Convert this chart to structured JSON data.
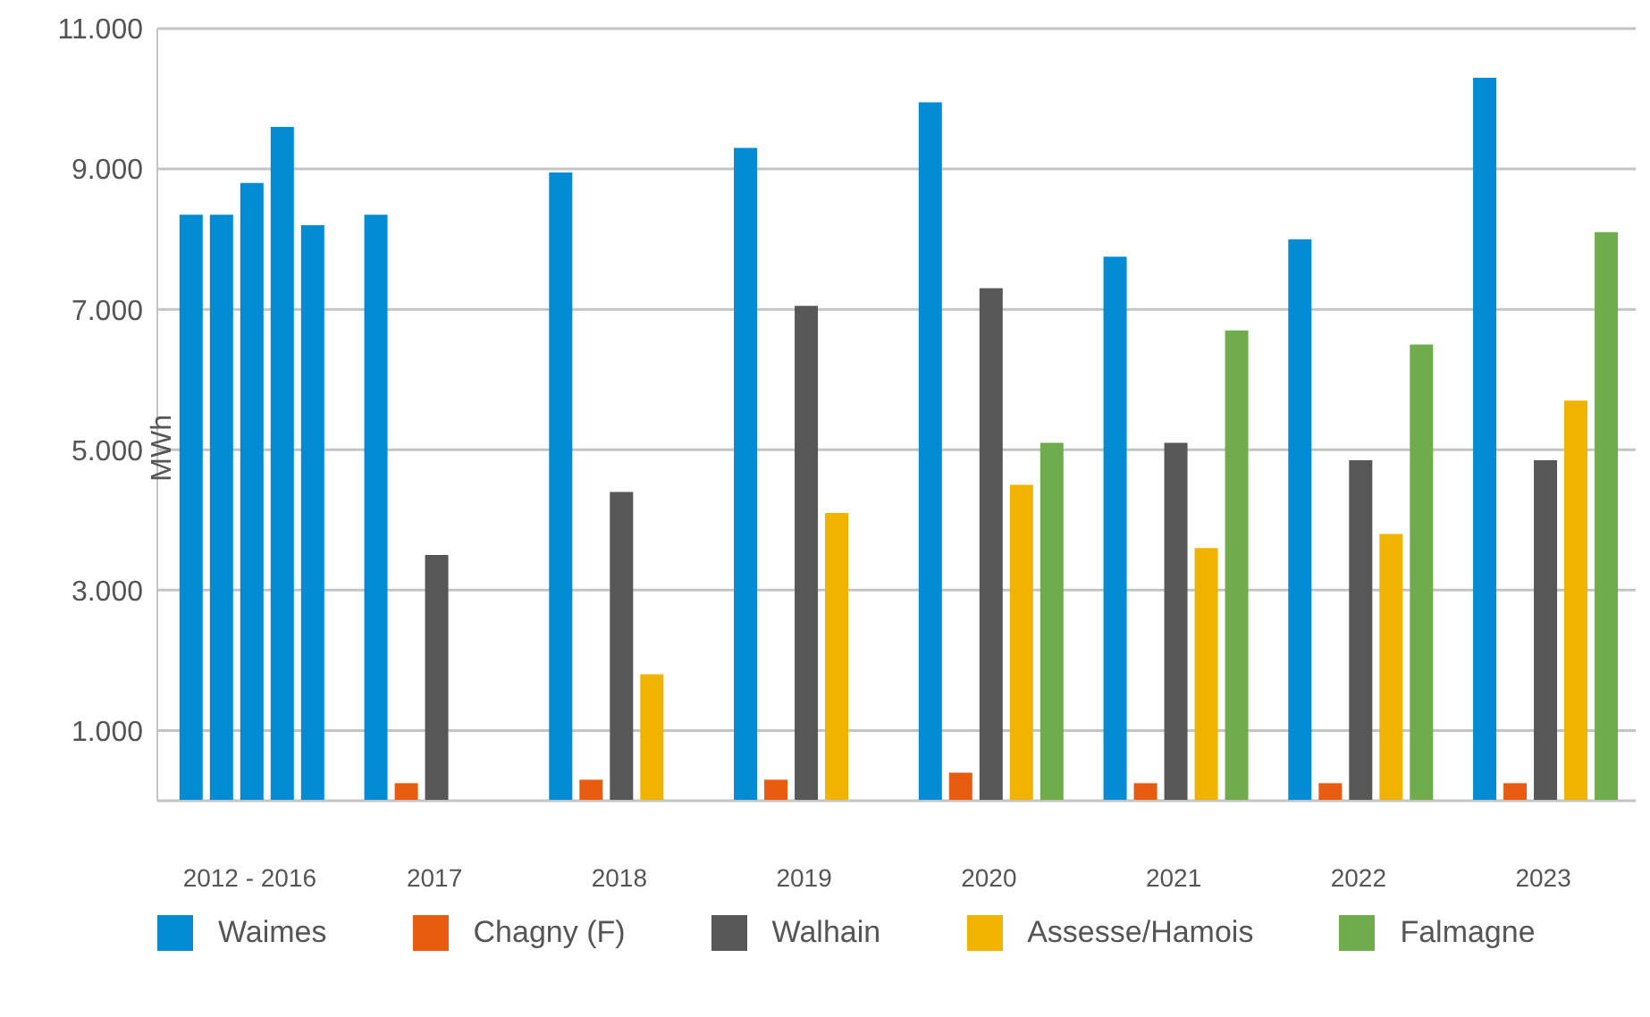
{
  "chart_data": {
    "type": "bar",
    "ylabel": "MWh",
    "categories": [
      "2012 - 2016",
      "2017",
      "2018",
      "2019",
      "2020",
      "2021",
      "2022",
      "2023"
    ],
    "series": [
      {
        "name": "Waimes",
        "color": "#038bd3",
        "values": [
          8350,
          8350,
          8950,
          9300,
          9950,
          7750,
          8000,
          10300
        ]
      },
      {
        "name": "Chagny (F)",
        "color": "#e85b10",
        "values": [
          null,
          250,
          300,
          300,
          400,
          250,
          250,
          250
        ]
      },
      {
        "name": "Walhain",
        "color": "#575757",
        "values": [
          null,
          3500,
          4400,
          7050,
          7300,
          5100,
          4850,
          4850
        ]
      },
      {
        "name": "Assesse/Hamois",
        "color": "#f0b400",
        "values": [
          null,
          null,
          1800,
          4100,
          4500,
          3600,
          3800,
          5700
        ]
      },
      {
        "name": "Falmagne",
        "color": "#71ac4c",
        "values": [
          null,
          null,
          null,
          null,
          5100,
          6700,
          6500,
          8100
        ]
      },
      {
        "color": "#038bd3",
        "values": [
          8350,
          null,
          null,
          null,
          null,
          null,
          null,
          null
        ]
      },
      {
        "color": "#038bd3",
        "values": [
          8800,
          null,
          null,
          null,
          null,
          null,
          null,
          null
        ]
      },
      {
        "color": "#038bd3",
        "values": [
          9600,
          null,
          null,
          null,
          null,
          null,
          null,
          null
        ]
      },
      {
        "color": "#038bd3",
        "values": [
          8200,
          null,
          null,
          null,
          null,
          null,
          null,
          null
        ]
      }
    ],
    "ylim": [
      0,
      11000
    ],
    "yticks": [
      {
        "value": 1000,
        "label": "1.000"
      },
      {
        "value": 3000,
        "label": "3.000"
      },
      {
        "value": 5000,
        "label": "5.000"
      },
      {
        "value": 7000,
        "label": "7.000"
      },
      {
        "value": 9000,
        "label": "9.000"
      },
      {
        "value": 11000,
        "label": "11.000"
      }
    ],
    "grid": "y",
    "legend": "bottom"
  }
}
